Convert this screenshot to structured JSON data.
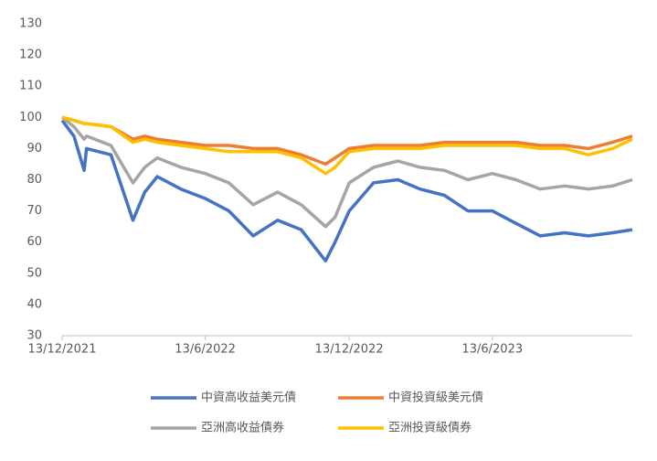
{
  "chart_data": {
    "type": "line",
    "x": [
      "2021-12-13",
      "2021-12-28",
      "2022-01-10",
      "2022-01-13",
      "2022-02-13",
      "2022-03-13",
      "2022-03-28",
      "2022-04-13",
      "2022-05-13",
      "2022-06-13",
      "2022-07-13",
      "2022-08-13",
      "2022-09-13",
      "2022-10-13",
      "2022-11-13",
      "2022-11-25",
      "2022-12-13",
      "2023-01-13",
      "2023-02-13",
      "2023-03-13",
      "2023-04-13",
      "2023-05-13",
      "2023-06-13",
      "2023-07-13",
      "2023-08-13",
      "2023-09-13",
      "2023-10-13",
      "2023-11-13",
      "2023-12-08"
    ],
    "series": [
      {
        "name": "中資高收益美元債",
        "color": "#4472c4",
        "values": [
          99,
          94,
          83,
          90,
          88,
          67,
          76,
          81,
          77,
          74,
          70,
          62,
          67,
          64,
          54,
          60,
          70,
          79,
          80,
          77,
          75,
          70,
          70,
          66,
          62,
          63,
          62,
          63,
          64
        ]
      },
      {
        "name": "中資投資級美元債",
        "color": "#ed7d31",
        "values": [
          100,
          99,
          98,
          98,
          97,
          93,
          94,
          93,
          92,
          91,
          91,
          90,
          90,
          88,
          85,
          87,
          90,
          91,
          91,
          91,
          92,
          92,
          92,
          92,
          91,
          91,
          90,
          92,
          94
        ]
      },
      {
        "name": "亞洲高收益債券",
        "color": "#a5a5a5",
        "values": [
          100,
          97,
          93,
          94,
          91,
          79,
          84,
          87,
          84,
          82,
          79,
          72,
          76,
          72,
          65,
          68,
          79,
          84,
          86,
          84,
          83,
          80,
          82,
          80,
          77,
          78,
          77,
          78,
          80
        ]
      },
      {
        "name": "亞洲投資級債券",
        "color": "#ffc000",
        "values": [
          100,
          99,
          98,
          98,
          97,
          92,
          93,
          92,
          91,
          90,
          89,
          89,
          89,
          87,
          82,
          84,
          89,
          90,
          90,
          90,
          91,
          91,
          91,
          91,
          90,
          90,
          88,
          90,
          93
        ]
      }
    ],
    "xlim": [
      "2021-12-13",
      "2023-12-08"
    ],
    "xticks": [
      {
        "value": "2021-12-13",
        "label": "13/12/2021"
      },
      {
        "value": "2022-06-13",
        "label": "13/6/2022"
      },
      {
        "value": "2022-12-13",
        "label": "13/12/2022"
      },
      {
        "value": "2023-06-13",
        "label": "13/6/2023"
      }
    ],
    "ylim": [
      30,
      130
    ],
    "yticks": [
      30,
      40,
      50,
      60,
      70,
      80,
      90,
      100,
      110,
      120,
      130
    ],
    "grid": false,
    "legend": "bottom"
  }
}
